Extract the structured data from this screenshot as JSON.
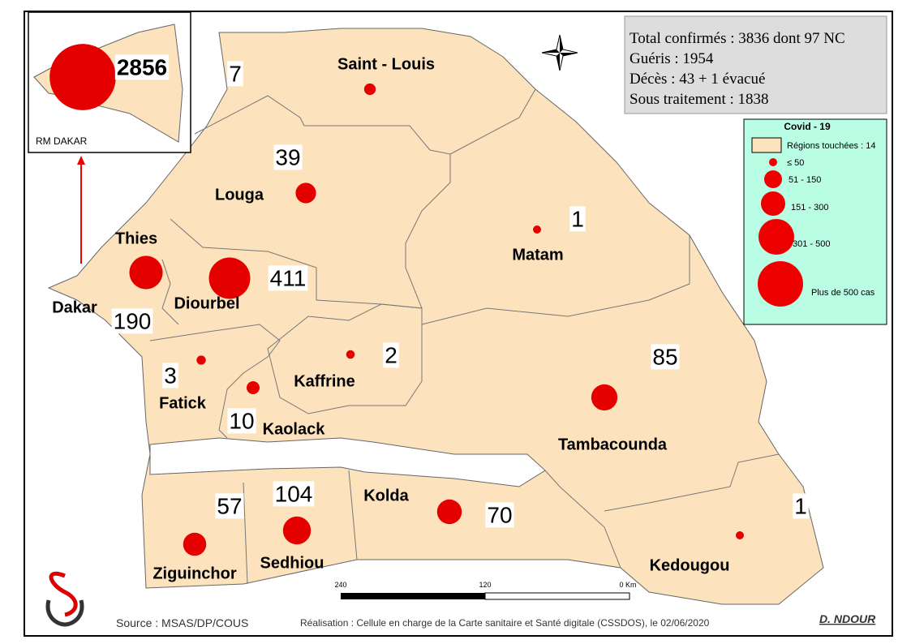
{
  "summary": {
    "lines": [
      "Total confirmés : 3836  dont 97  NC",
      "Guéris : 1954",
      "Décès : 43 + 1 évacué",
      "Sous traitement : 1838"
    ]
  },
  "inset": {
    "label": "RM DAKAR"
  },
  "regions": [
    {
      "name": "Dakar",
      "count": 2856
    },
    {
      "name": "Saint - Louis",
      "count": 7
    },
    {
      "name": "Louga",
      "count": 39
    },
    {
      "name": "Matam",
      "count": 1
    },
    {
      "name": "Thies",
      "count": 190
    },
    {
      "name": "Diourbel",
      "count": 411
    },
    {
      "name": "Fatick",
      "count": 3
    },
    {
      "name": "Kaolack",
      "count": 10
    },
    {
      "name": "Kaffrine",
      "count": 2
    },
    {
      "name": "Tambacounda",
      "count": 85
    },
    {
      "name": "Ziguinchor",
      "count": 57
    },
    {
      "name": "Sedhiou",
      "count": 104
    },
    {
      "name": "Kolda",
      "count": 70
    },
    {
      "name": "Kedougou",
      "count": 1
    }
  ],
  "legend": {
    "title": "Covid - 19",
    "items": [
      "Régions touchées : 14",
      "≤ 50",
      "51 - 150",
      "151 - 300",
      "301 - 500",
      "Plus de 500 cas"
    ]
  },
  "scale_bar": {
    "labels": [
      "240",
      "120",
      "0 Km"
    ]
  },
  "footer": {
    "source": "Source : MSAS/DP/COUS",
    "credit": "Réalisation : Cellule en charge de la Carte sanitaire et Santé digitale (CSSDOS), le 02/06/2020",
    "author": "D. NDOUR"
  }
}
